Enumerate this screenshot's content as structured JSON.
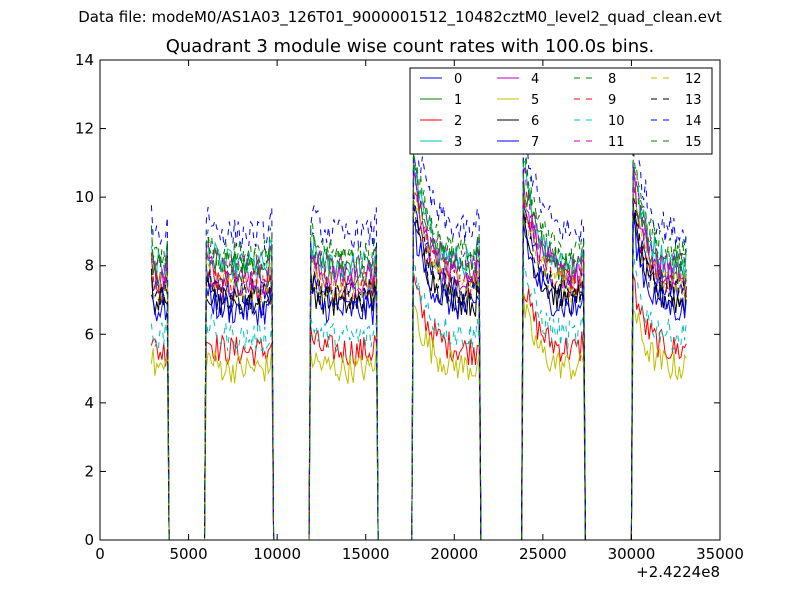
{
  "figure": {
    "suptitle": "Data file: modeM0/AS1A03_126T01_9000001512_10482cztM0_level2_quad_clean.evt",
    "title": "Quadrant 3 module wise count rates with 100.0s bins.",
    "x_offset_label": "+2.4224e8"
  },
  "chart_data": {
    "type": "line",
    "title": "Quadrant 3 module wise count rates with 100.0s bins.",
    "xlabel": "",
    "ylabel": "",
    "xlim": [
      0,
      35000
    ],
    "ylim": [
      0,
      14
    ],
    "x_offset": 242240000,
    "x_ticks": [
      "0",
      "5000",
      "10000",
      "15000",
      "20000",
      "25000",
      "30000",
      "35000"
    ],
    "y_ticks": [
      "0",
      "2",
      "4",
      "6",
      "8",
      "10",
      "12",
      "14"
    ],
    "grid": false,
    "legend_position": "top-right",
    "legend_columns": 4,
    "orbits": [
      {
        "start": 2900,
        "end": 3800,
        "profile": "flat"
      },
      {
        "start": 6000,
        "end": 9700,
        "profile": "flat"
      },
      {
        "start": 11900,
        "end": 15600,
        "profile": "flat"
      },
      {
        "start": 17700,
        "end": 21400,
        "profile": "decay"
      },
      {
        "start": 23900,
        "end": 27300,
        "profile": "decay"
      },
      {
        "start": 30100,
        "end": 33100,
        "profile": "decay"
      }
    ],
    "series": [
      {
        "name": "0",
        "color": "#0000ff",
        "dash": "solid",
        "level": 7.2
      },
      {
        "name": "1",
        "color": "#008000",
        "dash": "solid",
        "level": 7.8
      },
      {
        "name": "2",
        "color": "#ff0000",
        "dash": "solid",
        "level": 5.5
      },
      {
        "name": "3",
        "color": "#00bfbf",
        "dash": "solid",
        "level": 8.0
      },
      {
        "name": "4",
        "color": "#bf00bf",
        "dash": "solid",
        "level": 7.6
      },
      {
        "name": "5",
        "color": "#bfbf00",
        "dash": "solid",
        "level": 5.0
      },
      {
        "name": "6",
        "color": "#000000",
        "dash": "solid",
        "level": 6.9
      },
      {
        "name": "7",
        "color": "#0000ff",
        "dash": "solid",
        "level": 6.7
      },
      {
        "name": "8",
        "color": "#008000",
        "dash": "dashed",
        "level": 8.1
      },
      {
        "name": "9",
        "color": "#ff0000",
        "dash": "dashed",
        "level": 7.4
      },
      {
        "name": "10",
        "color": "#00bfbf",
        "dash": "dashed",
        "level": 5.9
      },
      {
        "name": "11",
        "color": "#bf00bf",
        "dash": "dashed",
        "level": 7.9
      },
      {
        "name": "12",
        "color": "#bfbf00",
        "dash": "dashed",
        "level": 7.3
      },
      {
        "name": "13",
        "color": "#000000",
        "dash": "dashed",
        "level": 7.1
      },
      {
        "name": "14",
        "color": "#0000ff",
        "dash": "dashed",
        "level": 8.9
      },
      {
        "name": "15",
        "color": "#008000",
        "dash": "dashed",
        "level": 8.3
      }
    ]
  }
}
